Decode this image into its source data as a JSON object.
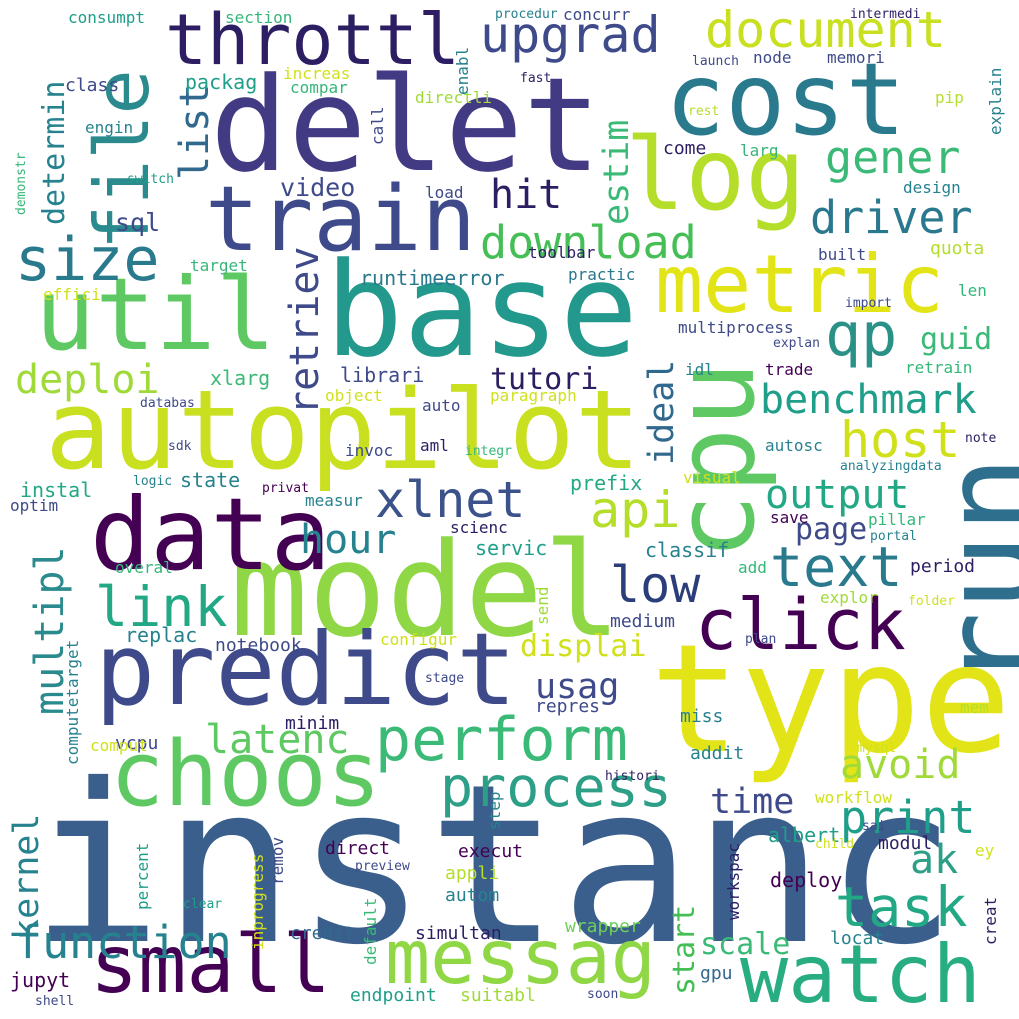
{
  "palette": {
    "dark_purple": "#440154",
    "indigo": "#3e4a89",
    "blue": "#31688e",
    "teal": "#26828e",
    "green_teal": "#1f9e89",
    "green": "#35b779",
    "light_green": "#6ece58",
    "lime": "#b5de2b",
    "yellow": "#fde725"
  },
  "words": [
    "instanc",
    "model",
    "type",
    "run",
    "delet",
    "base",
    "autopilot",
    "cost",
    "cpu",
    "data",
    "predict",
    "choos",
    "messag",
    "watch",
    "util",
    "train",
    "metric",
    "log",
    "small",
    "click",
    "file",
    "throttl",
    "xlnet",
    "perform",
    "process",
    "task",
    "text",
    "size",
    "qp",
    "host",
    "link",
    "function",
    "download",
    "upgrad",
    "document",
    "gener",
    "driver",
    "benchmark",
    "print",
    "api",
    "output",
    "low",
    "multipl",
    "latenc",
    "avoid",
    "deploi",
    "list",
    "retriev",
    "hit",
    "hour",
    "usag",
    "kernel",
    "tutori",
    "estim",
    "determin",
    "ideal",
    "time",
    "displai",
    "page",
    "scale",
    "start",
    "ak",
    "video",
    "sql",
    "guid",
    "runtimeerror",
    "librari",
    "xlarg",
    "classif",
    "servic",
    "prefix",
    "state",
    "instal",
    "replac",
    "jupyt",
    "notebook",
    "medium",
    "endpoint",
    "simultan",
    "suitabl",
    "credit",
    "wrapper",
    "autom",
    "appli",
    "execut",
    "direct",
    "albert",
    "deploy",
    "locat",
    "gpu",
    "default",
    "remov",
    "inprogress",
    "percent",
    "computetarget",
    "vcpu",
    "comput",
    "minim",
    "repres",
    "miss",
    "addit",
    "workspac",
    "modul",
    "period",
    "save",
    "pillar",
    "visual",
    "autosc",
    "trade",
    "idl",
    "packag",
    "class",
    "engin",
    "consumpt",
    "section",
    "concurr",
    "node",
    "memori",
    "pip",
    "larg",
    "come",
    "design",
    "quota",
    "len",
    "retrain",
    "target",
    "effici",
    "increas",
    "compar",
    "directli",
    "enabl",
    "call",
    "load",
    "toolbar",
    "practic",
    "built",
    "multiprocess",
    "object",
    "paragraph",
    "auto",
    "aml",
    "invoc",
    "measur",
    "scienc",
    "send",
    "configur",
    "overal",
    "optim",
    "explor",
    "plan",
    "workflow",
    "step",
    "stage",
    "preview",
    "clear",
    "shell",
    "soon",
    "creat",
    "ey",
    "mem",
    "explain",
    "launch",
    "fast",
    "rest",
    "procedur",
    "intermedi",
    "import",
    "explan",
    "note",
    "analyzingdata",
    "switch",
    "demonstr",
    "sdk",
    "databas",
    "logic",
    "privat",
    "integr",
    "portal",
    "folder",
    "mysql",
    "histori",
    "child",
    "sai",
    "add"
  ]
}
